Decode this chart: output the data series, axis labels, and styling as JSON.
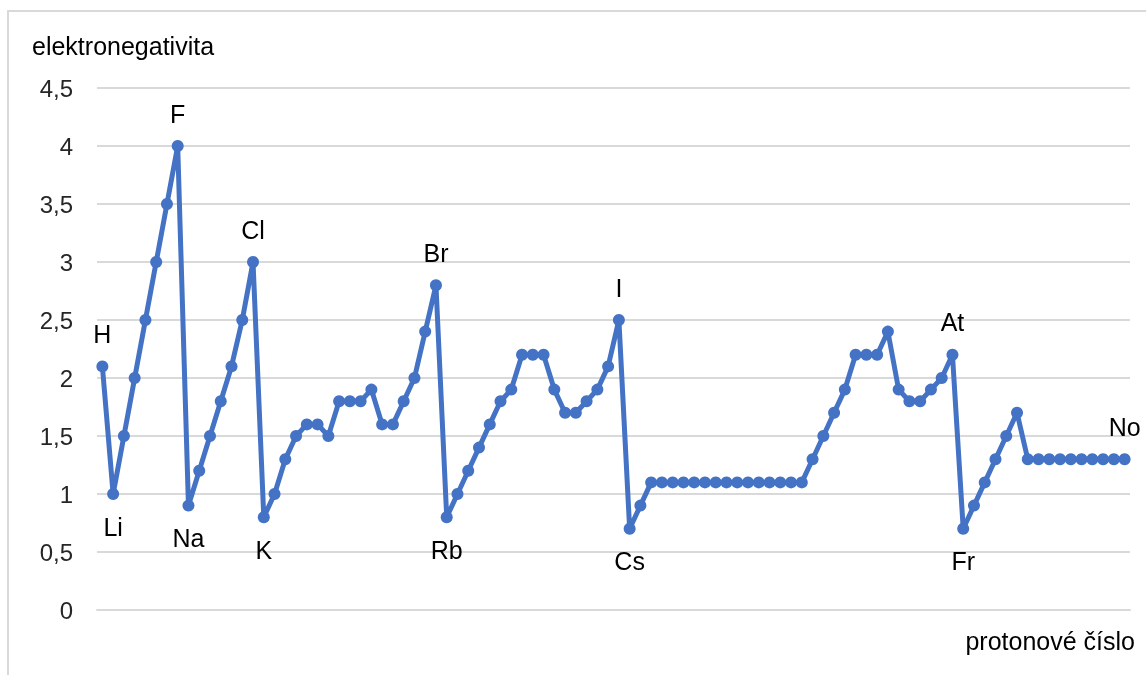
{
  "chart_data": {
    "type": "line",
    "xlabel": "protonové číslo",
    "ylabel": "elektronegativita",
    "categories": [
      null,
      null,
      null,
      null,
      null,
      null,
      null,
      null,
      null,
      null,
      null,
      null,
      null,
      null,
      null,
      null,
      null,
      null,
      null,
      null,
      null,
      null,
      null,
      null,
      null,
      null,
      null,
      null,
      null,
      null,
      null,
      null,
      null,
      null,
      null,
      null,
      null,
      null,
      null,
      null,
      null,
      null,
      null,
      null,
      null,
      null,
      null,
      null,
      null,
      null,
      null,
      null,
      null,
      null,
      null,
      null,
      null,
      null,
      null,
      null,
      null,
      null,
      null,
      null,
      null,
      null,
      null,
      null,
      null,
      null,
      null,
      null,
      null,
      null,
      null,
      null,
      null,
      null,
      null,
      null,
      null,
      null,
      null,
      null,
      null,
      null,
      null,
      null,
      null,
      null,
      null,
      null,
      null,
      null,
      null,
      null
    ],
    "values": [
      2.1,
      1.0,
      1.5,
      2.0,
      2.5,
      3.0,
      3.5,
      4.0,
      0.9,
      1.2,
      1.5,
      1.8,
      2.1,
      2.5,
      3.0,
      0.8,
      1.0,
      1.3,
      1.5,
      1.6,
      1.6,
      1.5,
      1.8,
      1.8,
      1.8,
      1.9,
      1.6,
      1.6,
      1.8,
      2.0,
      2.4,
      2.8,
      0.8,
      1.0,
      1.2,
      1.4,
      1.6,
      1.8,
      1.9,
      2.2,
      2.2,
      2.2,
      1.9,
      1.7,
      1.7,
      1.8,
      1.9,
      2.1,
      2.5,
      0.7,
      0.9,
      1.1,
      1.1,
      1.1,
      1.1,
      1.1,
      1.1,
      1.1,
      1.1,
      1.1,
      1.1,
      1.1,
      1.1,
      1.1,
      1.1,
      1.1,
      1.3,
      1.5,
      1.7,
      1.9,
      2.2,
      2.2,
      2.2,
      2.4,
      1.9,
      1.8,
      1.8,
      1.9,
      2.0,
      2.2,
      0.7,
      0.9,
      1.1,
      1.3,
      1.5,
      1.7,
      1.3,
      1.3,
      1.3,
      1.3,
      1.3,
      1.3,
      1.3,
      1.3,
      1.3,
      1.3
    ],
    "value_labels": [
      "H",
      "Li",
      null,
      null,
      null,
      null,
      null,
      "F",
      "Na",
      null,
      null,
      null,
      null,
      null,
      "Cl",
      "K",
      null,
      null,
      null,
      null,
      null,
      null,
      null,
      null,
      null,
      null,
      null,
      null,
      null,
      null,
      null,
      "Br",
      "Rb",
      null,
      null,
      null,
      null,
      null,
      null,
      null,
      null,
      null,
      null,
      null,
      null,
      null,
      null,
      null,
      "I",
      "Cs",
      null,
      null,
      null,
      null,
      null,
      null,
      null,
      null,
      null,
      null,
      null,
      null,
      null,
      null,
      null,
      null,
      null,
      null,
      null,
      null,
      null,
      null,
      null,
      null,
      null,
      null,
      null,
      null,
      null,
      "At",
      "Fr",
      null,
      null,
      null,
      null,
      null,
      null,
      null,
      null,
      null,
      null,
      null,
      null,
      null,
      null,
      "No"
    ],
    "color": "#4472c4",
    "marker": "circle",
    "line_style": "solid",
    "ylim": [
      0,
      4.5
    ],
    "yticks": [
      0,
      {
        "value": 0.5,
        "label": "0,5"
      },
      1,
      {
        "value": 1.5,
        "label": "1,5"
      },
      2,
      {
        "value": 2.5,
        "label": "2,5"
      },
      3,
      {
        "value": 3.5,
        "label": "3,5"
      },
      4,
      {
        "value": 4.5,
        "label": "4,5"
      }
    ],
    "grid": "y",
    "tick_labels": "y"
  }
}
